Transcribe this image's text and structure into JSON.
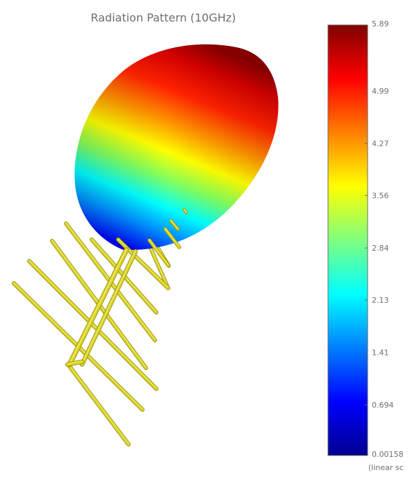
{
  "chart_data": {
    "type": "heatmap",
    "title": "Radiation Pattern  (10GHz)",
    "colorbar": {
      "min": 0.00158,
      "max": 5.89,
      "ticks": [
        {
          "value": 5.89,
          "label": "5.89"
        },
        {
          "value": 4.99,
          "label": "4.99"
        },
        {
          "value": 4.27,
          "label": "4.27"
        },
        {
          "value": 3.56,
          "label": "3.56"
        },
        {
          "value": 2.84,
          "label": "2.84"
        },
        {
          "value": 2.13,
          "label": "2.13"
        },
        {
          "value": 1.41,
          "label": "1.41"
        },
        {
          "value": 0.694,
          "label": "0.694"
        },
        {
          "value": 0.00158,
          "label": "0.00158"
        }
      ],
      "scale_label": "(linear sc",
      "colormap": [
        "#00008f",
        "#0000ff",
        "#00ffff",
        "#ffff00",
        "#ff0000",
        "#800000"
      ]
    },
    "pattern_color": "lobe shaded by gain, jet colormap",
    "antenna_color": "#d4cd1e"
  }
}
